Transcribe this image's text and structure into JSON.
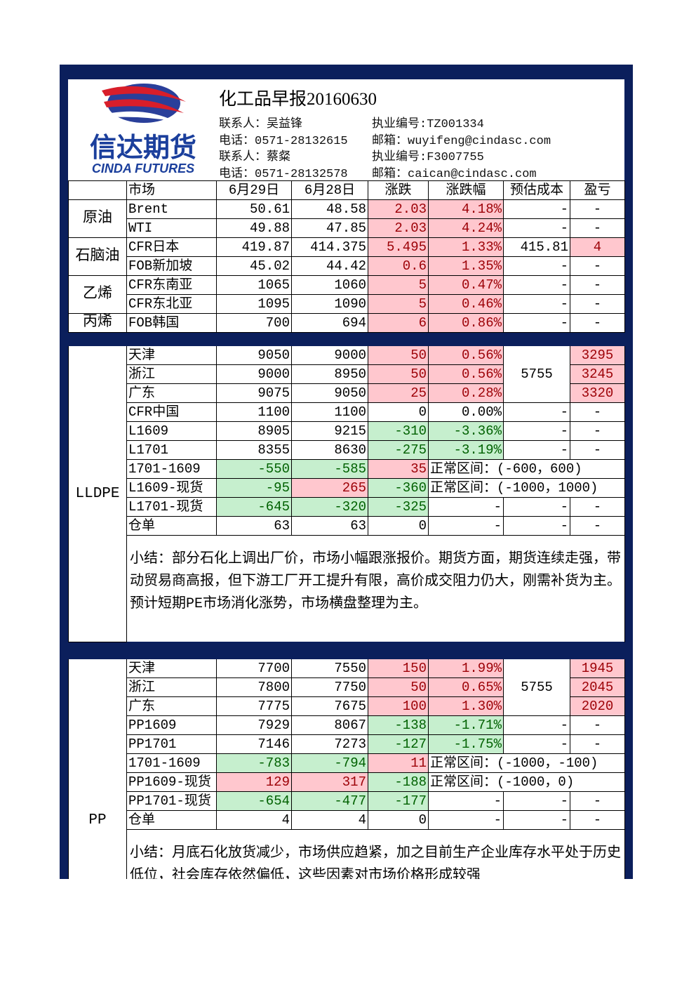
{
  "header": {
    "title": "化工品早报20160630",
    "logo": {
      "name": "信达期货",
      "name_en": "CINDA FUTURES"
    },
    "contacts": [
      [
        "联系人：吴益锋",
        "执业编号:TZ001334"
      ],
      [
        "电话：0571-28132615",
        "邮箱：wuyifeng@cindasc.com"
      ],
      [
        "联系人：蔡粲",
        "执业编号:F3007755"
      ],
      [
        "电话：0571-28132578",
        "邮箱：caican@cindasc.com"
      ]
    ]
  },
  "table": {
    "columns": [
      "市场",
      "6月29日",
      "6月28日",
      "涨跌",
      "涨跌幅",
      "预估成本",
      "盈亏"
    ],
    "groups": [
      {
        "label": "原油",
        "rows": [
          {
            "cells": [
              "Brent",
              "50.61",
              "48.58",
              "2.03",
              "4.18%",
              "-",
              "-"
            ],
            "fills": {
              "3": "pink",
              "4": "pink"
            }
          },
          {
            "cells": [
              "WTI",
              "49.88",
              "47.85",
              "2.03",
              "4.24%",
              "-",
              "-"
            ],
            "fills": {
              "3": "pink",
              "4": "pink"
            }
          }
        ]
      },
      {
        "label": "石脑油",
        "rows": [
          {
            "cells": [
              "CFR日本",
              "419.87",
              "414.375",
              "5.495",
              "1.33%",
              "415.81",
              "4"
            ],
            "fills": {
              "3": "pink",
              "4": "pink",
              "6": "pink"
            }
          },
          {
            "cells": [
              "FOB新加坡",
              "45.02",
              "44.42",
              "0.6",
              "1.35%",
              "-",
              "-"
            ],
            "fills": {
              "3": "pink",
              "4": "pink"
            }
          }
        ]
      },
      {
        "label": "乙烯",
        "rows": [
          {
            "cells": [
              "CFR东南亚",
              "1065",
              "1060",
              "5",
              "0.47%",
              "-",
              "-"
            ],
            "fills": {
              "3": "pink",
              "4": "pink"
            }
          },
          {
            "cells": [
              "CFR东北亚",
              "1095",
              "1090",
              "5",
              "0.46%",
              "-",
              "-"
            ],
            "fills": {
              "3": "pink",
              "4": "pink"
            }
          }
        ]
      },
      {
        "label": "丙烯",
        "rows": [
          {
            "cells": [
              "FOB韩国",
              "700",
              "694",
              "6",
              "0.86%",
              "-",
              "-"
            ],
            "fills": {
              "3": "pink",
              "4": "pink"
            }
          }
        ]
      },
      {
        "label": "LLDPE",
        "rows": [
          {
            "cells": [
              "天津",
              "9050",
              "9000",
              "50",
              "0.56%",
              "5755",
              "3295"
            ],
            "fills": {
              "3": "pink",
              "4": "pink",
              "6": "pink"
            }
          },
          {
            "cells": [
              "浙江",
              "9000",
              "8950",
              "50",
              "0.56%",
              "3245"
            ],
            "fills": {
              "3": "pink",
              "4": "pink",
              "5": "pink"
            }
          },
          {
            "cells": [
              "广东",
              "9075",
              "9050",
              "25",
              "0.28%",
              "3320"
            ],
            "fills": {
              "3": "pink",
              "4": "pink",
              "5": "pink"
            }
          },
          {
            "cells": [
              "CFR中国",
              "1100",
              "1100",
              "0",
              "0.00%",
              "-",
              "-"
            ]
          },
          {
            "cells": [
              "L1609",
              "8905",
              "9215",
              "-310",
              "-3.36%",
              "-",
              "-"
            ],
            "fills": {
              "3": "green",
              "4": "green"
            }
          },
          {
            "cells": [
              "L1701",
              "8355",
              "8630",
              "-275",
              "-3.19%",
              "-",
              "-"
            ],
            "fills": {
              "3": "green",
              "4": "green"
            }
          },
          {
            "cells": [
              "1701-1609",
              "-550",
              "-585",
              "35",
              "正常区间：(-600，600)"
            ],
            "fills": {
              "1": "green",
              "2": "green",
              "3": "pink"
            }
          },
          {
            "cells": [
              "L1609-现货",
              "-95",
              "265",
              "-360",
              "正常区间：(-1000，1000)"
            ],
            "fills": {
              "1": "green",
              "2": "pink",
              "3": "green"
            }
          },
          {
            "cells": [
              "L1701-现货",
              "-645",
              "-320",
              "-325",
              "-",
              "-",
              "-"
            ],
            "fills": {
              "1": "green",
              "2": "green",
              "3": "green"
            }
          },
          {
            "cells": [
              "仓单",
              "63",
              "63",
              "0",
              "-",
              "-",
              "-"
            ]
          }
        ],
        "summary": "小结：部分石化上调出厂价，市场小幅跟涨报价。期货方面，期货连续走强，带动贸易商高报，但下游工厂开工提升有限，高价成交阻力仍大，刚需补货为主。预计短期PE市场消化涨势，市场横盘整理为主。"
      },
      {
        "label": "PP",
        "rows": [
          {
            "cells": [
              "天津",
              "7700",
              "7550",
              "150",
              "1.99%",
              "5755",
              "1945"
            ],
            "fills": {
              "3": "pink",
              "4": "pink",
              "6": "pink"
            }
          },
          {
            "cells": [
              "浙江",
              "7800",
              "7750",
              "50",
              "0.65%",
              "2045"
            ],
            "fills": {
              "3": "pink",
              "4": "pink",
              "5": "pink"
            }
          },
          {
            "cells": [
              "广东",
              "7775",
              "7675",
              "100",
              "1.30%",
              "2020"
            ],
            "fills": {
              "3": "pink",
              "4": "pink",
              "5": "pink"
            }
          },
          {
            "cells": [
              "PP1609",
              "7929",
              "8067",
              "-138",
              "-1.71%",
              "-",
              "-"
            ],
            "fills": {
              "3": "green",
              "4": "green"
            }
          },
          {
            "cells": [
              "PP1701",
              "7146",
              "7273",
              "-127",
              "-1.75%",
              "-",
              "-"
            ],
            "fills": {
              "3": "green",
              "4": "green"
            }
          },
          {
            "cells": [
              "1701-1609",
              "-783",
              "-794",
              "11",
              "正常区间：(-1000，-100)"
            ],
            "fills": {
              "1": "green",
              "2": "green",
              "3": "pink"
            }
          },
          {
            "cells": [
              "PP1609-现货",
              "129",
              "317",
              "-188",
              "正常区间：(-1000，0)"
            ],
            "fills": {
              "1": "pink",
              "2": "pink",
              "3": "green"
            }
          },
          {
            "cells": [
              "PP1701-现货",
              "-654",
              "-477",
              "-177",
              "-",
              "-",
              "-"
            ],
            "fills": {
              "1": "green",
              "2": "green",
              "3": "green"
            }
          },
          {
            "cells": [
              "仓单",
              "4",
              "4",
              "0",
              "-",
              "-",
              "-"
            ]
          }
        ],
        "summary": "小结：月底石化放货减少，市场供应趋紧，加之目前生产企业库存水平处于历史低位，社会库存依然偏低，这些因素对市场价格形成较强"
      }
    ]
  }
}
